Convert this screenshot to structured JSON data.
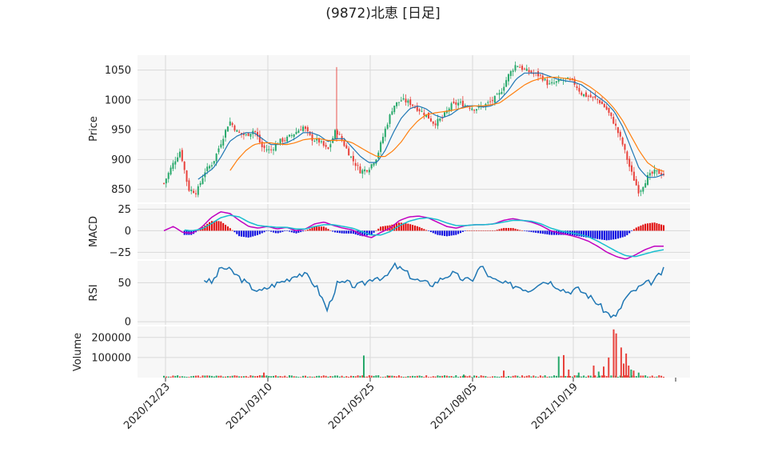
{
  "chart_data": {
    "type": "candlestick",
    "title": "(9872)北恵  [日足]",
    "date_ticks": [
      "2020/12/23",
      "2021/03/10",
      "2021/05/25",
      "2021/08/05",
      "2021/10/19"
    ],
    "colors": {
      "up": "#26a86a",
      "down": "#e8413b",
      "ma_short": "#1f77b4",
      "ma_long": "#ff7f0e",
      "macd": "#c000c0",
      "signal": "#17becf",
      "hist_pos": "#e00000",
      "hist_neg": "#0000e0",
      "rsi": "#1f77b4",
      "grid": "#d9d9d9",
      "panel_bg": "#f7f7f7"
    },
    "panels": {
      "price": {
        "ylabel": "Price",
        "ylim": [
          828,
          1075
        ],
        "yticks": [
          {
            "v": 850,
            "label": "850"
          },
          {
            "v": 900,
            "label": "900"
          },
          {
            "v": 950,
            "label": "950"
          },
          {
            "v": 1000,
            "label": "1000"
          },
          {
            "v": 1050,
            "label": "1050"
          }
        ],
        "close_path": [
          860,
          890,
          915,
          850,
          845,
          880,
          895,
          930,
          965,
          945,
          940,
          950,
          920,
          915,
          930,
          935,
          945,
          955,
          935,
          930,
          915,
          950,
          925,
          900,
          880,
          885,
          905,
          950,
          990,
          1000,
          995,
          985,
          975,
          960,
          970,
          990,
          995,
          990,
          985,
          990,
          998,
          1010,
          1040,
          1060,
          1050,
          1045,
          1040,
          1025,
          1030,
          1035,
          1030,
          1010,
          1005,
          1000,
          985,
          960,
          925,
          880,
          845,
          870,
          880,
          875
        ],
        "ma_short_path": [
          null,
          null,
          null,
          null,
          865,
          875,
          885,
          905,
          930,
          940,
          945,
          945,
          935,
          925,
          925,
          928,
          935,
          945,
          945,
          940,
          930,
          935,
          935,
          920,
          905,
          895,
          895,
          915,
          945,
          970,
          985,
          990,
          985,
          975,
          970,
          975,
          985,
          990,
          990,
          988,
          990,
          1000,
          1015,
          1035,
          1045,
          1045,
          1045,
          1040,
          1035,
          1032,
          1030,
          1025,
          1015,
          1005,
          995,
          980,
          955,
          920,
          885,
          870,
          870,
          875
        ],
        "ma_long_path": [
          null,
          null,
          null,
          null,
          null,
          null,
          null,
          null,
          880,
          900,
          915,
          925,
          928,
          928,
          926,
          925,
          928,
          933,
          935,
          935,
          932,
          932,
          932,
          928,
          920,
          912,
          905,
          905,
          915,
          930,
          950,
          965,
          975,
          978,
          980,
          982,
          985,
          988,
          990,
          990,
          992,
          995,
          1005,
          1015,
          1025,
          1032,
          1036,
          1038,
          1038,
          1036,
          1034,
          1030,
          1022,
          1012,
          1000,
          985,
          965,
          940,
          915,
          895,
          885,
          880
        ]
      },
      "macd": {
        "ylabel": "MACD",
        "ylim": [
          -33,
          31
        ],
        "yticks": [
          {
            "v": 25,
            "label": "25"
          },
          {
            "v": 0,
            "label": "0"
          },
          {
            "v": -25,
            "label": "−25"
          }
        ],
        "macd_path": [
          0,
          5,
          -2,
          -3,
          4,
          15,
          22,
          20,
          12,
          5,
          3,
          5,
          2,
          4,
          0,
          2,
          8,
          10,
          6,
          3,
          1,
          -5,
          -8,
          -2,
          3,
          12,
          16,
          17,
          15,
          10,
          5,
          3,
          6,
          7,
          7,
          8,
          12,
          14,
          12,
          10,
          6,
          0,
          -3,
          -5,
          -8,
          -12,
          -18,
          -25,
          -30,
          -33,
          -28,
          -22,
          -18,
          -18
        ],
        "signal_path": [
          null,
          null,
          1,
          0,
          2,
          8,
          15,
          18,
          16,
          10,
          6,
          5,
          4,
          4,
          2,
          2,
          5,
          7,
          7,
          5,
          3,
          -1,
          -5,
          -5,
          -1,
          6,
          11,
          14,
          15,
          13,
          9,
          6,
          6,
          7,
          7,
          8,
          10,
          12,
          12,
          11,
          8,
          3,
          0,
          -2,
          -4,
          -7,
          -12,
          -18,
          -24,
          -29,
          -30,
          -27,
          -24,
          -22
        ]
      },
      "rsi": {
        "ylabel": "RSI",
        "ylim": [
          -4,
          78
        ],
        "yticks": [
          {
            "v": 0,
            "label": "0"
          },
          {
            "v": 50,
            "label": "50"
          }
        ],
        "rsi_path": [
          null,
          null,
          null,
          null,
          55,
          50,
          70,
          65,
          55,
          45,
          38,
          45,
          50,
          55,
          62,
          58,
          42,
          15,
          48,
          50,
          45,
          50,
          58,
          55,
          72,
          65,
          55,
          50,
          48,
          56,
          62,
          55,
          52,
          72,
          55,
          50,
          47,
          45,
          40,
          50,
          52,
          45,
          38,
          42,
          35,
          25,
          12,
          5,
          30,
          40,
          48,
          52,
          66
        ]
      },
      "volume": {
        "ylabel": "Volume",
        "ylim": [
          0,
          255000
        ],
        "yticks": [
          {
            "v": 100000,
            "label": "100000"
          },
          {
            "v": 200000,
            "label": "200000"
          }
        ],
        "bars": [
          {
            "i": 0.2,
            "v": 25000,
            "up": false
          },
          {
            "i": 0.4,
            "v": 110000,
            "up": true
          },
          {
            "i": 0.45,
            "v": 8000,
            "up": false
          },
          {
            "i": 0.6,
            "v": 15000,
            "up": true
          },
          {
            "i": 0.68,
            "v": 35000,
            "up": false
          },
          {
            "i": 0.79,
            "v": 105000,
            "up": true
          },
          {
            "i": 0.8,
            "v": 112000,
            "up": false
          },
          {
            "i": 0.81,
            "v": 40000,
            "up": false
          },
          {
            "i": 0.83,
            "v": 25000,
            "up": true
          },
          {
            "i": 0.86,
            "v": 60000,
            "up": false
          },
          {
            "i": 0.87,
            "v": 30000,
            "up": true
          },
          {
            "i": 0.88,
            "v": 55000,
            "up": false
          },
          {
            "i": 0.89,
            "v": 100000,
            "up": false
          },
          {
            "i": 0.9,
            "v": 240000,
            "up": false
          },
          {
            "i": 0.905,
            "v": 220000,
            "up": false
          },
          {
            "i": 0.915,
            "v": 150000,
            "up": false
          },
          {
            "i": 0.92,
            "v": 70000,
            "up": false
          },
          {
            "i": 0.925,
            "v": 120000,
            "up": false
          },
          {
            "i": 0.93,
            "v": 60000,
            "up": false
          },
          {
            "i": 0.935,
            "v": 40000,
            "up": true
          },
          {
            "i": 0.94,
            "v": 35000,
            "up": false
          },
          {
            "i": 0.95,
            "v": 25000,
            "up": true
          }
        ]
      }
    }
  }
}
